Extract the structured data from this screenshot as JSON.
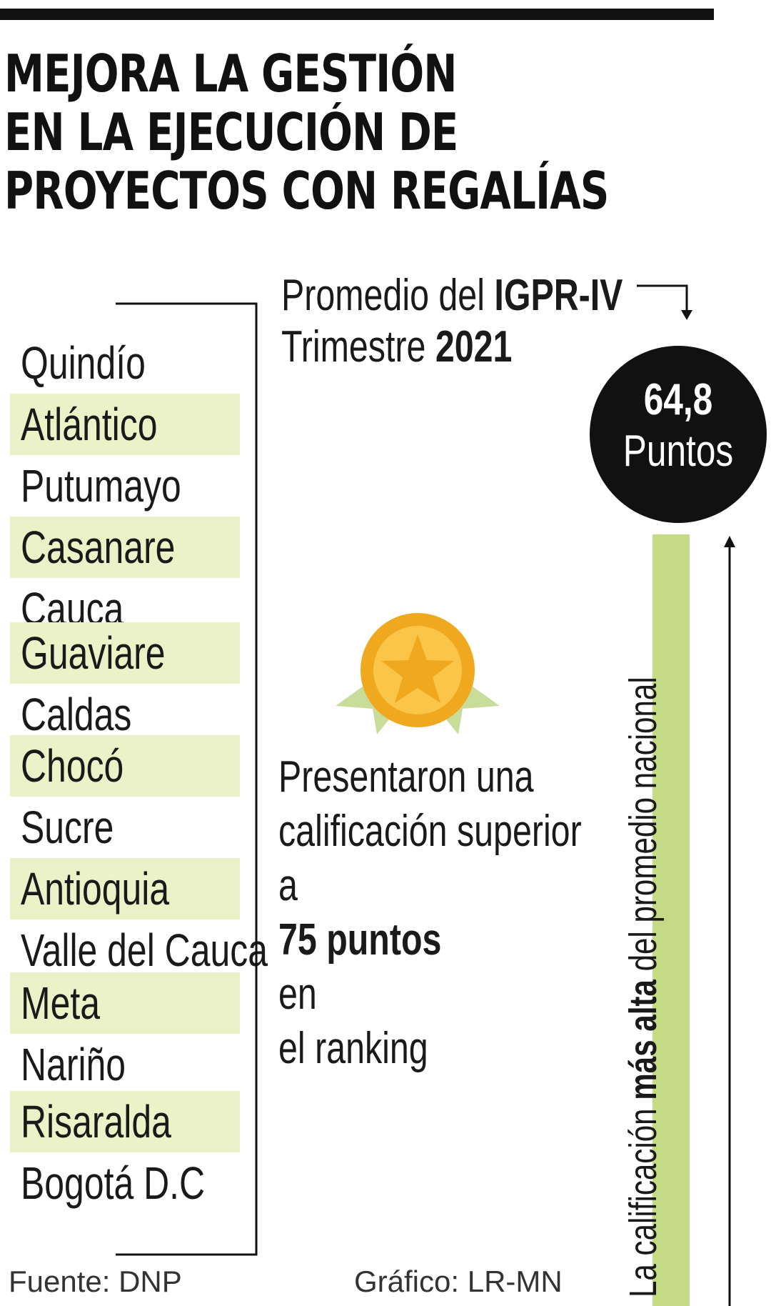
{
  "header": {
    "title_lines": [
      "MEJORA LA GESTIÓN",
      "EN LA EJECUCIÓN DE",
      "PROYECTOS CON REGALÍAS"
    ]
  },
  "ranking": {
    "items": [
      "Quindío",
      "Atlántico",
      "Putumayo",
      "Casanare",
      "Cauca",
      "Guaviare",
      "Caldas",
      "Chocó",
      "Sucre",
      "Antioquia",
      "Valle del Cauca",
      "Meta",
      "Nariño",
      "Risaralda",
      "Bogotá D.C"
    ]
  },
  "average": {
    "line1_prefix": "Promedio del ",
    "line1_bold": "IGPR-IV",
    "line2_prefix": "Trimestre ",
    "line2_bold": "2021",
    "value": "64,8",
    "unit": "Puntos"
  },
  "note": {
    "line1": "Presentaron una",
    "line2": "calificación superior",
    "line3_prefix": "a ",
    "line3_bold": "75 puntos",
    "line3_suffix": " en",
    "line4": "el ranking"
  },
  "vertical_label": {
    "prefix": "La calificación ",
    "bold": "más alta",
    "suffix": " del promedio nacional"
  },
  "footer": {
    "source": "Fuente: DNP",
    "credit": "Gráfico: LR-MN"
  },
  "colors": {
    "accent_green": "#c4da85",
    "row_shade": "#ecf2c7",
    "medal_gold": "#f0a81e",
    "medal_inner": "#fbc54a",
    "ribbon_green": "#c9dd9a",
    "dark": "#111111"
  },
  "icons": {
    "medal": "medal-star-icon",
    "arrow_down": "arrow-down-icon",
    "arrow_up": "arrow-up-icon"
  }
}
